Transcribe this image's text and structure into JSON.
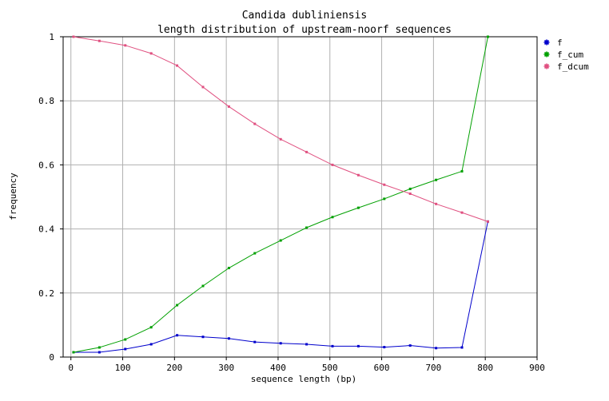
{
  "chart_data": {
    "type": "line",
    "title": "Candida dubliniensis",
    "subtitle": "length distribution of upstream-noorf sequences",
    "xlabel": "sequence length (bp)",
    "ylabel": "frequency",
    "xlim": [
      -15,
      900
    ],
    "ylim": [
      0,
      1
    ],
    "xticks": [
      0,
      100,
      200,
      300,
      400,
      500,
      600,
      700,
      800,
      900
    ],
    "yticks": [
      0,
      0.2,
      0.4,
      0.6,
      0.8,
      1
    ],
    "xtick_labels": [
      "0",
      "100",
      "200",
      "300",
      "400",
      "500",
      "600",
      "700",
      "800",
      "900"
    ],
    "ytick_labels": [
      "0",
      "0.2",
      "0.4",
      "0.6",
      "0.8",
      "1"
    ],
    "grid": true,
    "legend_position": "right",
    "x": [
      5,
      55,
      105,
      155,
      205,
      255,
      305,
      355,
      405,
      455,
      505,
      555,
      605,
      655,
      705,
      755,
      805
    ],
    "series": [
      {
        "name": "f",
        "color": "#0000cc",
        "values": [
          0.015,
          0.015,
          0.025,
          0.04,
          0.068,
          0.063,
          0.058,
          0.047,
          0.043,
          0.04,
          0.034,
          0.034,
          0.031,
          0.036,
          0.028,
          0.03,
          0.423
        ]
      },
      {
        "name": "f_cum",
        "color": "#00a000",
        "values": [
          0.015,
          0.03,
          0.055,
          0.093,
          0.162,
          0.222,
          0.278,
          0.324,
          0.364,
          0.404,
          0.437,
          0.466,
          0.494,
          0.525,
          0.553,
          0.58,
          1.0
        ]
      },
      {
        "name": "f_dcum",
        "color": "#e05080",
        "values": [
          1.0,
          0.987,
          0.973,
          0.948,
          0.91,
          0.843,
          0.782,
          0.728,
          0.68,
          0.64,
          0.6,
          0.568,
          0.538,
          0.51,
          0.478,
          0.451,
          0.423
        ]
      }
    ]
  }
}
